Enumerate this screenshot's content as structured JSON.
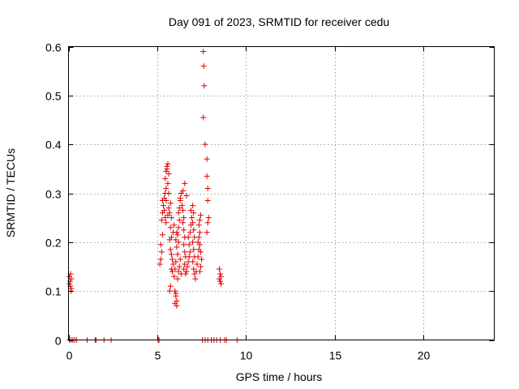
{
  "chart_data": {
    "type": "scatter",
    "title": "Day 091 of 2023, SRMTID for receiver cedu",
    "xlabel": "GPS time / hours",
    "ylabel": "SRMTID / TECUs",
    "xlim": [
      0,
      24
    ],
    "ylim": [
      0,
      0.6
    ],
    "x_ticks": [
      0,
      5,
      10,
      15,
      20
    ],
    "x_tick_labels": [
      "0",
      "5",
      "10",
      "15",
      "20"
    ],
    "y_ticks": [
      0,
      0.1,
      0.2,
      0.3,
      0.4,
      0.5,
      0.6
    ],
    "y_tick_labels": [
      "0",
      "0.1",
      "0.2",
      "0.3",
      "0.4",
      "0.5",
      "0.6"
    ],
    "grid": true,
    "marker": "+",
    "series": [
      {
        "name": "SRMTID",
        "color": "#e00000",
        "points": [
          [
            0.05,
            0.13
          ],
          [
            0.08,
            0.12
          ],
          [
            0.1,
            0.11
          ],
          [
            0.12,
            0.135
          ],
          [
            0.14,
            0.1
          ],
          [
            0.16,
            0.125
          ],
          [
            0.06,
            0.115
          ],
          [
            0.15,
            0.105
          ],
          [
            0.05,
            0
          ],
          [
            0.15,
            0
          ],
          [
            0.25,
            0
          ],
          [
            0.35,
            0
          ],
          [
            0.45,
            0
          ],
          [
            1.05,
            0
          ],
          [
            1.5,
            0
          ],
          [
            1.55,
            0
          ],
          [
            2.0,
            0
          ],
          [
            2.4,
            0
          ],
          [
            5.05,
            0
          ],
          [
            5.1,
            0
          ],
          [
            7.55,
            0
          ],
          [
            7.7,
            0
          ],
          [
            7.85,
            0
          ],
          [
            8.05,
            0
          ],
          [
            8.2,
            0
          ],
          [
            8.35,
            0
          ],
          [
            8.55,
            0
          ],
          [
            8.8,
            0
          ],
          [
            8.9,
            0
          ],
          [
            9.5,
            0
          ],
          [
            5.15,
            0.155
          ],
          [
            5.2,
            0.165
          ],
          [
            5.25,
            0.18
          ],
          [
            5.2,
            0.195
          ],
          [
            5.3,
            0.215
          ],
          [
            5.25,
            0.245
          ],
          [
            5.3,
            0.26
          ],
          [
            5.35,
            0.275
          ],
          [
            5.3,
            0.285
          ],
          [
            5.4,
            0.29
          ],
          [
            5.45,
            0.3
          ],
          [
            5.5,
            0.31
          ],
          [
            5.45,
            0.33
          ],
          [
            5.5,
            0.345
          ],
          [
            5.55,
            0.355
          ],
          [
            5.6,
            0.36
          ],
          [
            5.55,
            0.35
          ],
          [
            5.65,
            0.34
          ],
          [
            5.6,
            0.32
          ],
          [
            5.65,
            0.3
          ],
          [
            5.5,
            0.285
          ],
          [
            5.4,
            0.265
          ],
          [
            5.45,
            0.25
          ],
          [
            5.5,
            0.24
          ],
          [
            5.6,
            0.255
          ],
          [
            5.65,
            0.27
          ],
          [
            5.75,
            0.28
          ],
          [
            5.7,
            0.26
          ],
          [
            5.8,
            0.25
          ],
          [
            5.75,
            0.23
          ],
          [
            5.8,
            0.21
          ],
          [
            5.7,
            0.205
          ],
          [
            5.75,
            0.185
          ],
          [
            5.8,
            0.175
          ],
          [
            5.85,
            0.165
          ],
          [
            5.9,
            0.155
          ],
          [
            5.8,
            0.145
          ],
          [
            5.85,
            0.14
          ],
          [
            5.75,
            0.11
          ],
          [
            5.7,
            0.1
          ],
          [
            6.0,
            0.1
          ],
          [
            6.05,
            0.09
          ],
          [
            6.1,
            0.08
          ],
          [
            6.0,
            0.075
          ],
          [
            6.1,
            0.07
          ],
          [
            6.05,
            0.095
          ],
          [
            5.95,
            0.13
          ],
          [
            6.0,
            0.145
          ],
          [
            6.05,
            0.16
          ],
          [
            6.15,
            0.175
          ],
          [
            6.1,
            0.19
          ],
          [
            6.2,
            0.2
          ],
          [
            6.15,
            0.215
          ],
          [
            6.2,
            0.23
          ],
          [
            6.25,
            0.245
          ],
          [
            6.2,
            0.26
          ],
          [
            6.25,
            0.27
          ],
          [
            6.3,
            0.29
          ],
          [
            6.35,
            0.3
          ],
          [
            6.3,
            0.285
          ],
          [
            6.4,
            0.275
          ],
          [
            6.45,
            0.265
          ],
          [
            6.5,
            0.25
          ],
          [
            6.45,
            0.24
          ],
          [
            6.5,
            0.225
          ],
          [
            6.55,
            0.21
          ],
          [
            6.5,
            0.195
          ],
          [
            6.55,
            0.18
          ],
          [
            6.6,
            0.17
          ],
          [
            6.55,
            0.155
          ],
          [
            6.5,
            0.145
          ],
          [
            6.6,
            0.135
          ],
          [
            6.65,
            0.14
          ],
          [
            6.7,
            0.15
          ],
          [
            6.75,
            0.16
          ],
          [
            6.8,
            0.17
          ],
          [
            6.85,
            0.18
          ],
          [
            6.8,
            0.195
          ],
          [
            6.75,
            0.21
          ],
          [
            6.85,
            0.22
          ],
          [
            6.9,
            0.235
          ],
          [
            6.95,
            0.25
          ],
          [
            6.9,
            0.265
          ],
          [
            7.0,
            0.275
          ],
          [
            7.05,
            0.26
          ],
          [
            7.0,
            0.24
          ],
          [
            7.05,
            0.225
          ],
          [
            7.1,
            0.21
          ],
          [
            7.0,
            0.2
          ],
          [
            7.05,
            0.185
          ],
          [
            7.1,
            0.17
          ],
          [
            7.0,
            0.16
          ],
          [
            7.05,
            0.145
          ],
          [
            7.1,
            0.135
          ],
          [
            7.15,
            0.125
          ],
          [
            7.2,
            0.14
          ],
          [
            7.25,
            0.155
          ],
          [
            7.3,
            0.17
          ],
          [
            7.35,
            0.185
          ],
          [
            7.3,
            0.2
          ],
          [
            7.35,
            0.21
          ],
          [
            7.4,
            0.22
          ],
          [
            7.35,
            0.235
          ],
          [
            7.4,
            0.245
          ],
          [
            7.45,
            0.255
          ],
          [
            7.4,
            0.195
          ],
          [
            7.45,
            0.18
          ],
          [
            7.5,
            0.165
          ],
          [
            7.45,
            0.15
          ],
          [
            7.4,
            0.14
          ],
          [
            6.45,
            0.305
          ],
          [
            6.55,
            0.32
          ],
          [
            6.65,
            0.295
          ],
          [
            6.2,
            0.14
          ],
          [
            6.25,
            0.15
          ],
          [
            6.3,
            0.165
          ],
          [
            6.35,
            0.135
          ],
          [
            6.15,
            0.125
          ],
          [
            5.9,
            0.22
          ],
          [
            5.95,
            0.235
          ],
          [
            6.05,
            0.205
          ],
          [
            6.1,
            0.22
          ],
          [
            7.6,
            0.59
          ],
          [
            7.62,
            0.56
          ],
          [
            7.65,
            0.52
          ],
          [
            7.6,
            0.455
          ],
          [
            7.7,
            0.4
          ],
          [
            7.8,
            0.37
          ],
          [
            7.8,
            0.335
          ],
          [
            7.85,
            0.31
          ],
          [
            7.85,
            0.285
          ],
          [
            7.9,
            0.25
          ],
          [
            7.85,
            0.24
          ],
          [
            7.8,
            0.22
          ],
          [
            8.5,
            0.145
          ],
          [
            8.55,
            0.135
          ],
          [
            8.6,
            0.13
          ],
          [
            8.5,
            0.125
          ],
          [
            8.55,
            0.12
          ],
          [
            8.6,
            0.115
          ]
        ]
      }
    ]
  }
}
